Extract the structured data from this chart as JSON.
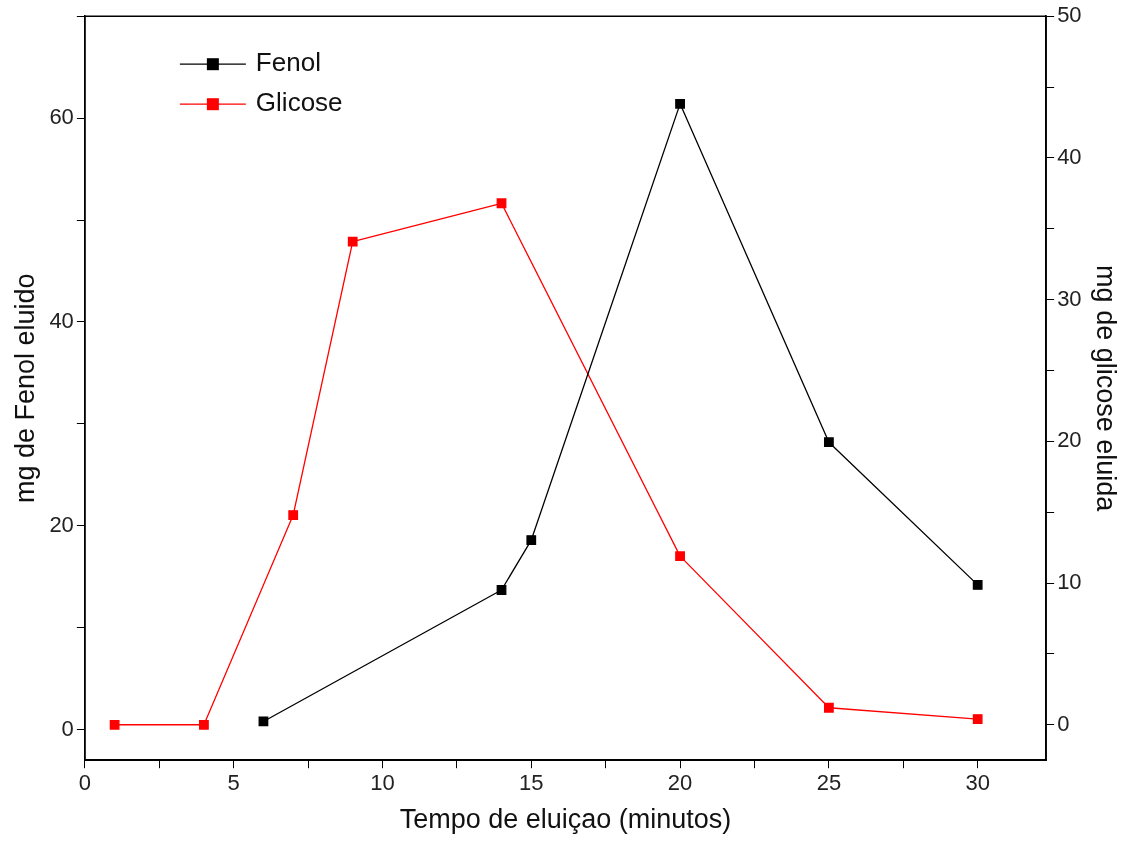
{
  "chart_data": {
    "type": "line",
    "xlabel": "Tempo de eluiçao (minutos)",
    "ylabel": "mg de Fenol eluido",
    "y2label": "mg de glicose eluida",
    "xlim": [
      0,
      32.3
    ],
    "xticks": [
      0,
      {
        "value": 2.5,
        "label": null
      },
      5,
      {
        "value": 7.5,
        "label": null
      },
      10,
      {
        "value": 12.5,
        "label": null
      },
      15,
      {
        "value": 17.5,
        "label": null
      },
      20,
      {
        "value": 22.5,
        "label": null
      },
      25,
      {
        "value": 27.5,
        "label": null
      },
      30
    ],
    "ylim": [
      -3,
      70
    ],
    "yticks": [
      0,
      {
        "value": 10,
        "label": null
      },
      20,
      {
        "value": 30,
        "label": null
      },
      40,
      {
        "value": 50,
        "label": null
      },
      60,
      {
        "value": 70,
        "label": null
      }
    ],
    "y2lim": [
      -2.5,
      50
    ],
    "y2ticks": [
      0,
      {
        "value": 5,
        "label": null
      },
      10,
      {
        "value": 15,
        "label": null
      },
      20,
      {
        "value": 25,
        "label": null
      },
      30,
      {
        "value": 35,
        "label": null
      },
      40,
      {
        "value": 45,
        "label": null
      },
      50
    ],
    "series": [
      {
        "name": "Fenol",
        "color": "#000000",
        "x": [
          6,
          14,
          15,
          20,
          25,
          30
        ],
        "values": [
          0.8,
          13.7,
          18.6,
          61.4,
          28.2,
          14.2
        ]
      },
      {
        "name": "Glicose",
        "color": "#ff0000",
        "axis": "y2",
        "x": [
          1,
          4,
          7,
          9,
          14,
          20,
          25,
          30
        ],
        "values": [
          0,
          0,
          14.8,
          34.1,
          36.8,
          11.9,
          1.2,
          0.4
        ]
      }
    ],
    "marker": "square",
    "line_style": "solid",
    "legend": "top left",
    "grid": false
  }
}
